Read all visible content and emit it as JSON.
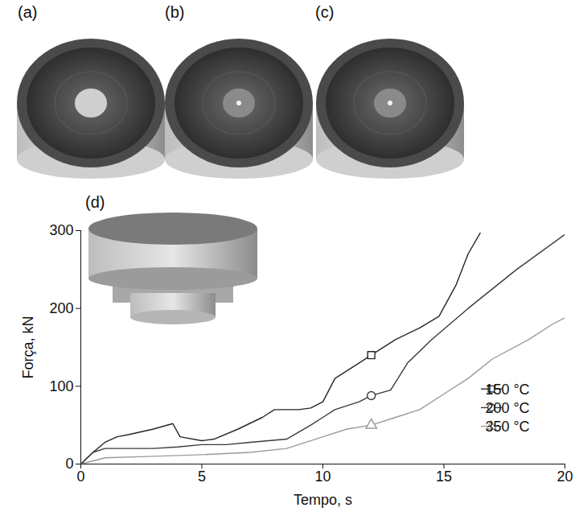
{
  "chart_data": {
    "type": "line",
    "x_label": "Tempo, s",
    "y_label": "Força, kN",
    "xlim": [
      0,
      20
    ],
    "xticks": [
      0,
      5,
      10,
      15,
      20
    ],
    "ylim": [
      0,
      300
    ],
    "yticks": [
      0,
      100,
      200,
      300
    ],
    "legend": "right",
    "annotations": [
      "(a)",
      "(b)",
      "(c)",
      "(d)"
    ],
    "series": [
      {
        "name": "150 °C",
        "color": "#262626",
        "marker": "square",
        "x": [
          0,
          0.5,
          1,
          1.5,
          2,
          3,
          3.8,
          4.1,
          5,
          5.5,
          6.5,
          7.5,
          8,
          9,
          9.5,
          10,
          10.5,
          11.5,
          12,
          13,
          14,
          14.8,
          15.5,
          16,
          16.5
        ],
        "values": [
          0,
          15,
          28,
          35,
          38,
          45,
          52,
          35,
          30,
          32,
          45,
          60,
          70,
          70,
          72,
          80,
          110,
          130,
          140,
          160,
          175,
          190,
          230,
          270,
          297
        ]
      },
      {
        "name": "200 °C",
        "color": "#3a3a3a",
        "marker": "circle",
        "x": [
          0,
          0.5,
          1,
          3,
          4,
          5,
          6,
          7,
          8.5,
          9.5,
          10,
          10.5,
          11.5,
          12,
          12.8,
          13.5,
          14.5,
          16,
          18,
          20
        ],
        "values": [
          0,
          15,
          20,
          20,
          22,
          25,
          25,
          28,
          32,
          50,
          60,
          70,
          80,
          88,
          95,
          130,
          160,
          200,
          250,
          295
        ]
      },
      {
        "name": "350 °C",
        "color": "#9a9a9a",
        "marker": "triangle",
        "x": [
          0,
          1,
          3,
          5,
          7,
          8.5,
          9,
          10,
          11,
          12,
          13,
          14,
          15,
          16,
          17,
          18.5,
          19.5,
          20
        ],
        "values": [
          0,
          8,
          10,
          12,
          15,
          20,
          25,
          35,
          45,
          50,
          60,
          70,
          90,
          110,
          135,
          160,
          180,
          188
        ]
      }
    ]
  }
}
